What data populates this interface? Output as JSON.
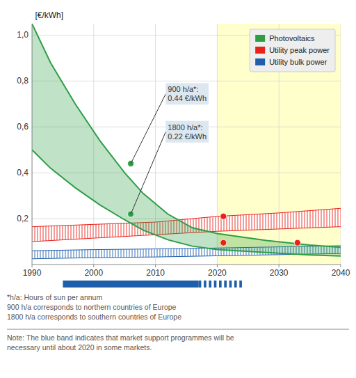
{
  "chart_data": {
    "type": "area",
    "ylabel": "[€/kWh]",
    "xlim": [
      1990,
      2040
    ],
    "xticks": [
      1990,
      2000,
      2010,
      2020,
      2030,
      2040
    ],
    "ylim": [
      0,
      1.05
    ],
    "yticks": [
      {
        "value": 0.2,
        "label": "0,2"
      },
      {
        "value": 0.4,
        "label": "0,4"
      },
      {
        "value": 0.6,
        "label": "0,6"
      },
      {
        "value": 0.8,
        "label": "0,8"
      },
      {
        "value": 1.0,
        "label": "1,0"
      }
    ],
    "grid": true,
    "legend": "upper right",
    "future": {
      "start": 2020,
      "color": "#ffffcc"
    },
    "series": [
      {
        "name": "Photovoltaics",
        "type": "area",
        "color": "#2e9e46",
        "x": [
          1990,
          1993,
          1997,
          2001,
          2005,
          2008,
          2012,
          2016,
          2020,
          2028,
          2035,
          2040
        ],
        "upper": [
          1.05,
          0.88,
          0.7,
          0.54,
          0.4,
          0.31,
          0.22,
          0.16,
          0.135,
          0.105,
          0.085,
          0.075
        ],
        "lower": [
          0.5,
          0.42,
          0.335,
          0.26,
          0.195,
          0.15,
          0.108,
          0.08,
          0.065,
          0.052,
          0.042,
          0.037
        ]
      },
      {
        "name": "Utility peak power",
        "type": "band",
        "color": "#e8221a",
        "x": [
          1990,
          2000,
          2010,
          2020,
          2030,
          2040
        ],
        "upper": [
          0.165,
          0.175,
          0.185,
          0.21,
          0.225,
          0.245
        ],
        "lower": [
          0.1,
          0.115,
          0.13,
          0.145,
          0.155,
          0.165
        ]
      },
      {
        "name": "Utility bulk power",
        "type": "band",
        "color": "#1f5faa",
        "x": [
          1990,
          2000,
          2010,
          2020,
          2030,
          2040
        ],
        "upper": [
          0.06,
          0.065,
          0.068,
          0.072,
          0.077,
          0.082
        ],
        "lower": [
          0.025,
          0.03,
          0.033,
          0.038,
          0.043,
          0.048
        ]
      }
    ],
    "points": [
      {
        "x": 2006,
        "y": 0.44,
        "color": "#2e9e46"
      },
      {
        "x": 2006,
        "y": 0.22,
        "color": "#2e9e46"
      },
      {
        "x": 2021,
        "y": 0.21,
        "color": "#e8221a"
      },
      {
        "x": 2021,
        "y": 0.095,
        "color": "#e8221a"
      },
      {
        "x": 2033,
        "y": 0.095,
        "color": "#e8221a"
      }
    ],
    "annotations": [
      {
        "text": "900 h/a*:\n0.44 €/kWh",
        "x": 2006,
        "y": 0.44,
        "text_x": 2012,
        "text_y": 0.7
      },
      {
        "text": "1800 h/a*:\n0.22 €/kWh",
        "x": 2006,
        "y": 0.22,
        "text_x": 2012,
        "text_y": 0.535
      }
    ],
    "support_bar": {
      "color": "#1f5faa",
      "solid": [
        1995,
        2017
      ],
      "dashed": [
        2017,
        2024
      ],
      "dashes": 9
    },
    "footnotes": [
      "*h/a: Hours of sun per annum",
      "900 h/a corresponds to northern countries of Europe",
      "1800 h/a corresponds to southern countries of Europe"
    ],
    "note": "Note: The blue band indicates that market support programmes will be\nnecessary until about 2020 in some markets."
  }
}
